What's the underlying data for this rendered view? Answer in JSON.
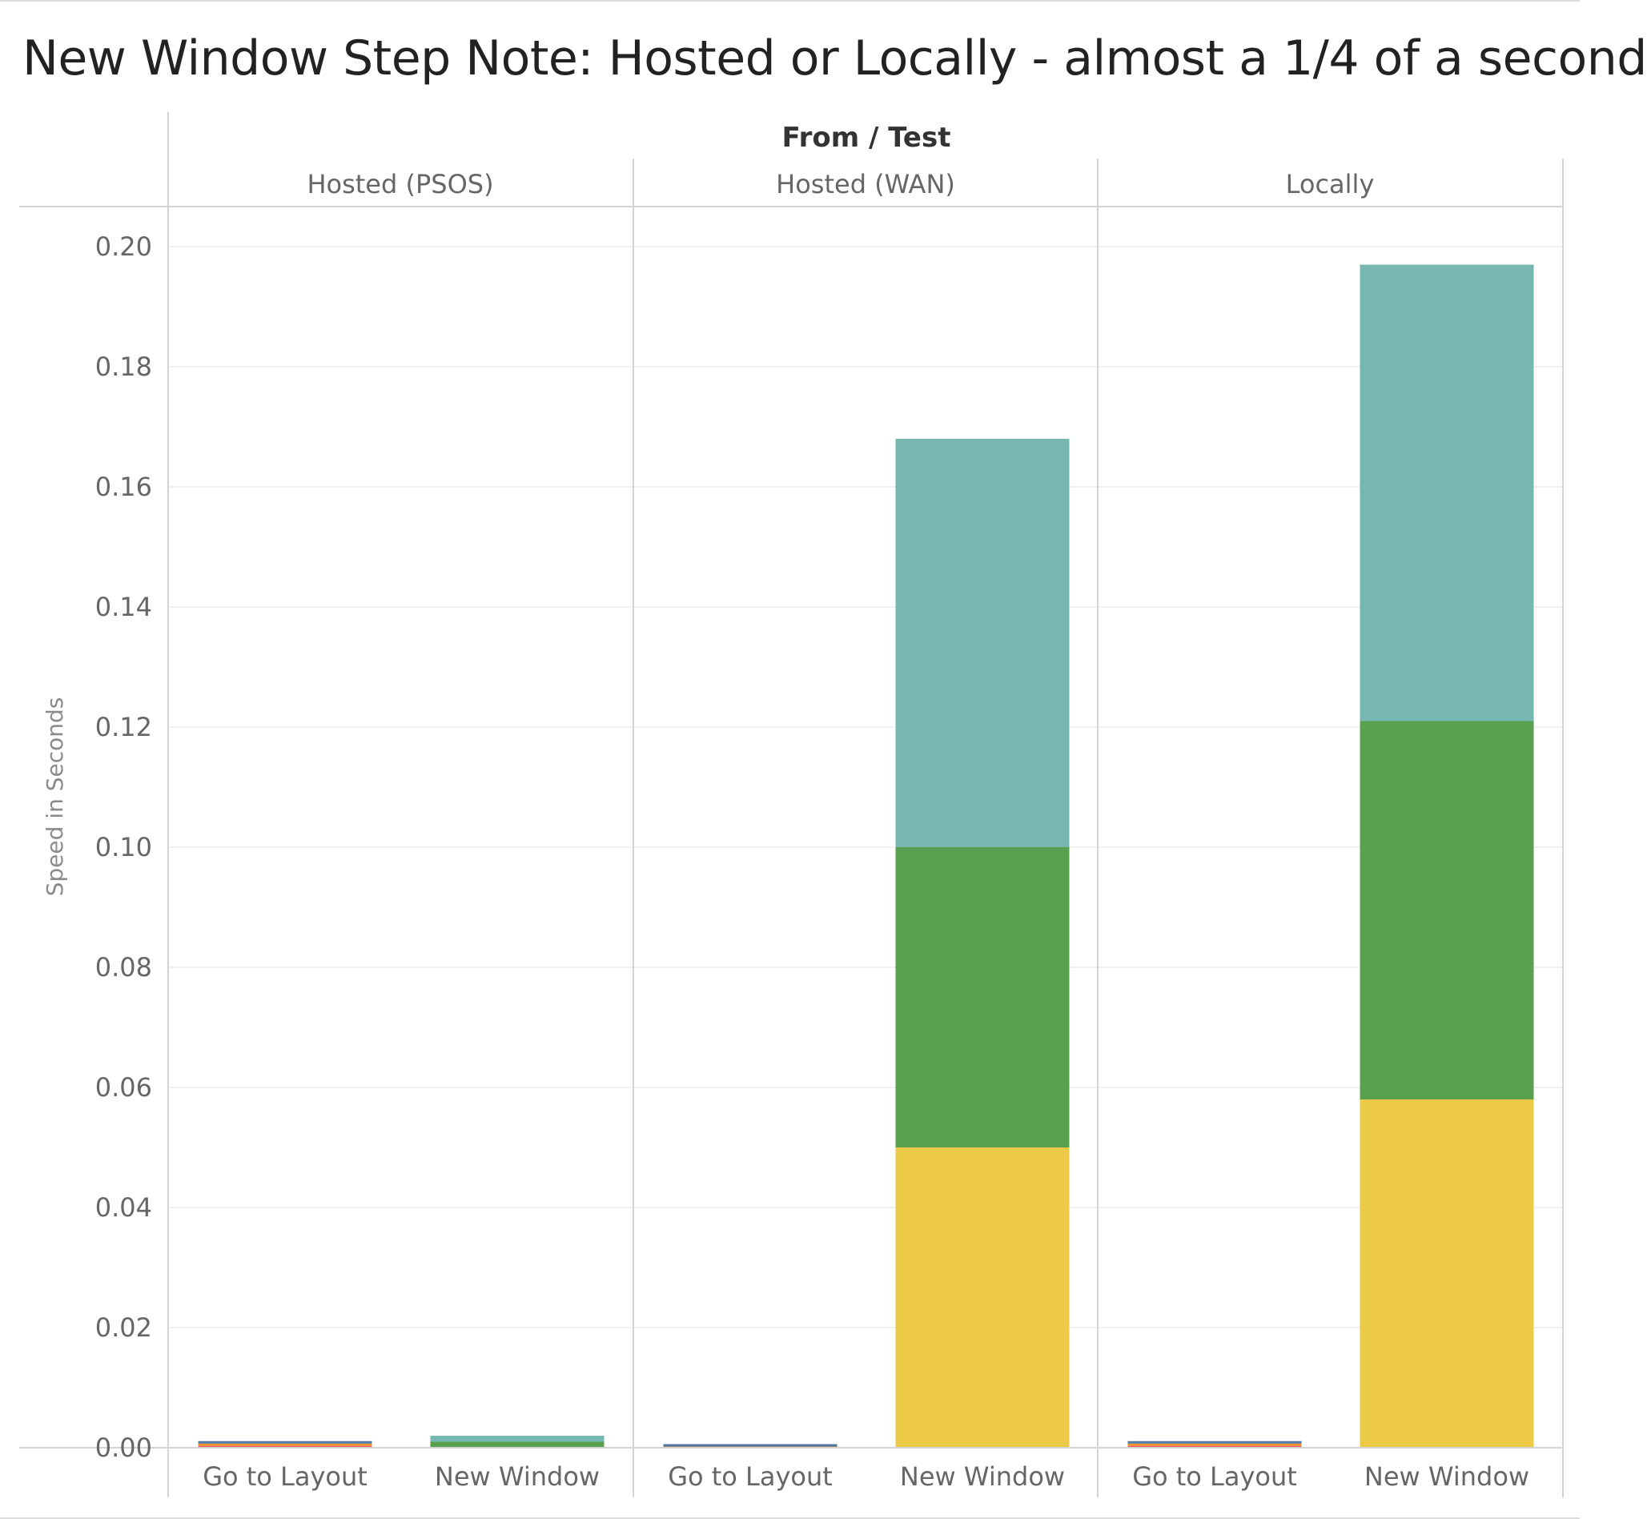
{
  "chart_data": {
    "type": "bar",
    "stacked": true,
    "title": "New Window Step Note: Hosted or Locally - almost a 1/4 of a second",
    "column_header": "From / Test",
    "ylabel": "Speed in Seconds",
    "xlabel": "",
    "ylim": [
      0,
      0.2
    ],
    "yticks": [
      "0.00",
      "0.02",
      "0.04",
      "0.06",
      "0.08",
      "0.10",
      "0.12",
      "0.14",
      "0.16",
      "0.18",
      "0.20"
    ],
    "grid": true,
    "panels": [
      {
        "name": "Hosted (PSOS)",
        "categories": [
          "Go to Layout",
          "New Window"
        ],
        "bars": [
          {
            "category": "Go to Layout",
            "segments": [
              {
                "color": "#e15759",
                "value": 0.0003
              },
              {
                "color": "#f28e2b",
                "value": 0.0004
              },
              {
                "color": "#4e79a7",
                "value": 0.0004
              }
            ]
          },
          {
            "category": "New Window",
            "segments": [
              {
                "color": "#59a14f",
                "value": 0.001
              },
              {
                "color": "#76b7b2",
                "value": 0.001
              }
            ]
          }
        ]
      },
      {
        "name": "Hosted (WAN)",
        "categories": [
          "Go to Layout",
          "New Window"
        ],
        "bars": [
          {
            "category": "Go to Layout",
            "segments": [
              {
                "color": "#f28e2b",
                "value": 0.0002
              },
              {
                "color": "#4e79a7",
                "value": 0.0004
              }
            ]
          },
          {
            "category": "New Window",
            "segments": [
              {
                "color": "#edc948",
                "value": 0.05
              },
              {
                "color": "#59a14f",
                "value": 0.05
              },
              {
                "color": "#76b7b2",
                "value": 0.068
              }
            ]
          }
        ]
      },
      {
        "name": "Locally",
        "categories": [
          "Go to Layout",
          "New Window"
        ],
        "bars": [
          {
            "category": "Go to Layout",
            "segments": [
              {
                "color": "#e15759",
                "value": 0.0003
              },
              {
                "color": "#f28e2b",
                "value": 0.0004
              },
              {
                "color": "#4e79a7",
                "value": 0.0004
              }
            ]
          },
          {
            "category": "New Window",
            "segments": [
              {
                "color": "#edc948",
                "value": 0.058
              },
              {
                "color": "#59a14f",
                "value": 0.063
              },
              {
                "color": "#76b7b2",
                "value": 0.076
              }
            ]
          }
        ]
      }
    ]
  }
}
